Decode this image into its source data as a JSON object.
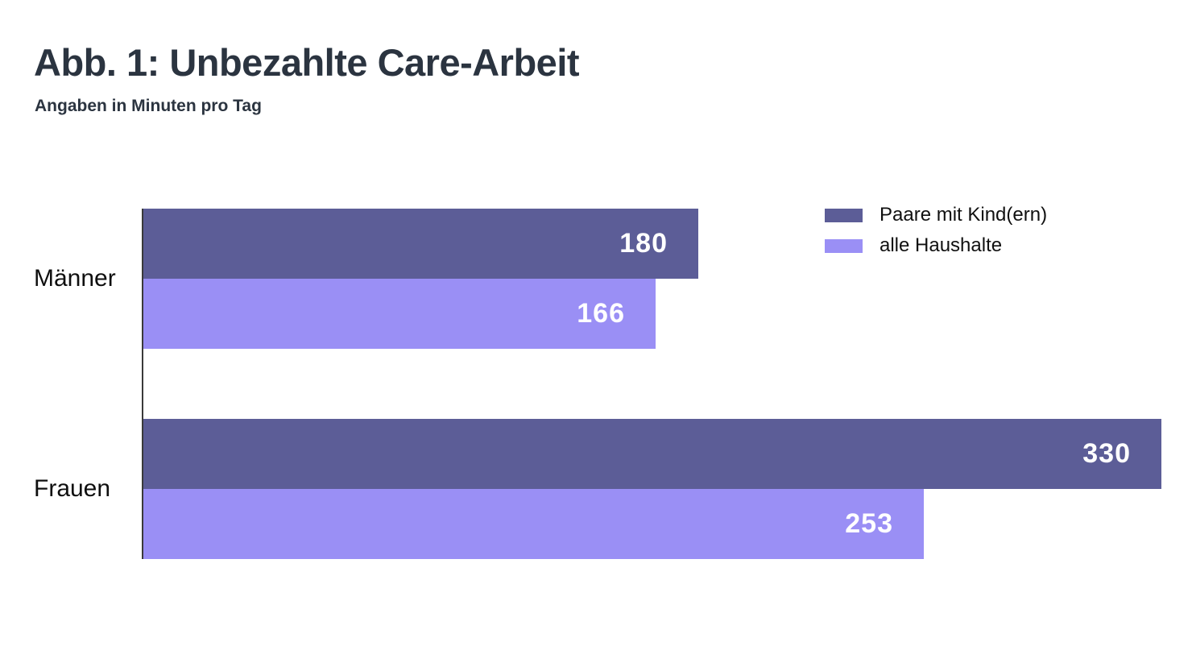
{
  "chart_data": {
    "type": "bar",
    "orientation": "horizontal",
    "title": "Abb. 1: Unbezahlte Care-Arbeit",
    "subtitle": "Angaben in Minuten pro Tag",
    "unit": "Minuten pro Tag",
    "categories": [
      "Männer",
      "Frauen"
    ],
    "series": [
      {
        "name": "Paare mit Kind(ern)",
        "color": "#5c5d97",
        "values": [
          180,
          330
        ]
      },
      {
        "name": "alle Haushalte",
        "color": "#9a8ff5",
        "values": [
          166,
          253
        ]
      }
    ],
    "value_labels": "inside-end",
    "value_label_color": "#ffffff",
    "xlim": [
      0,
      345
    ],
    "grid": false,
    "legend_position": "top-right",
    "axis_line_color": "#3a3a3a",
    "title_color": "#2b3440",
    "background_color": "#ffffff"
  }
}
